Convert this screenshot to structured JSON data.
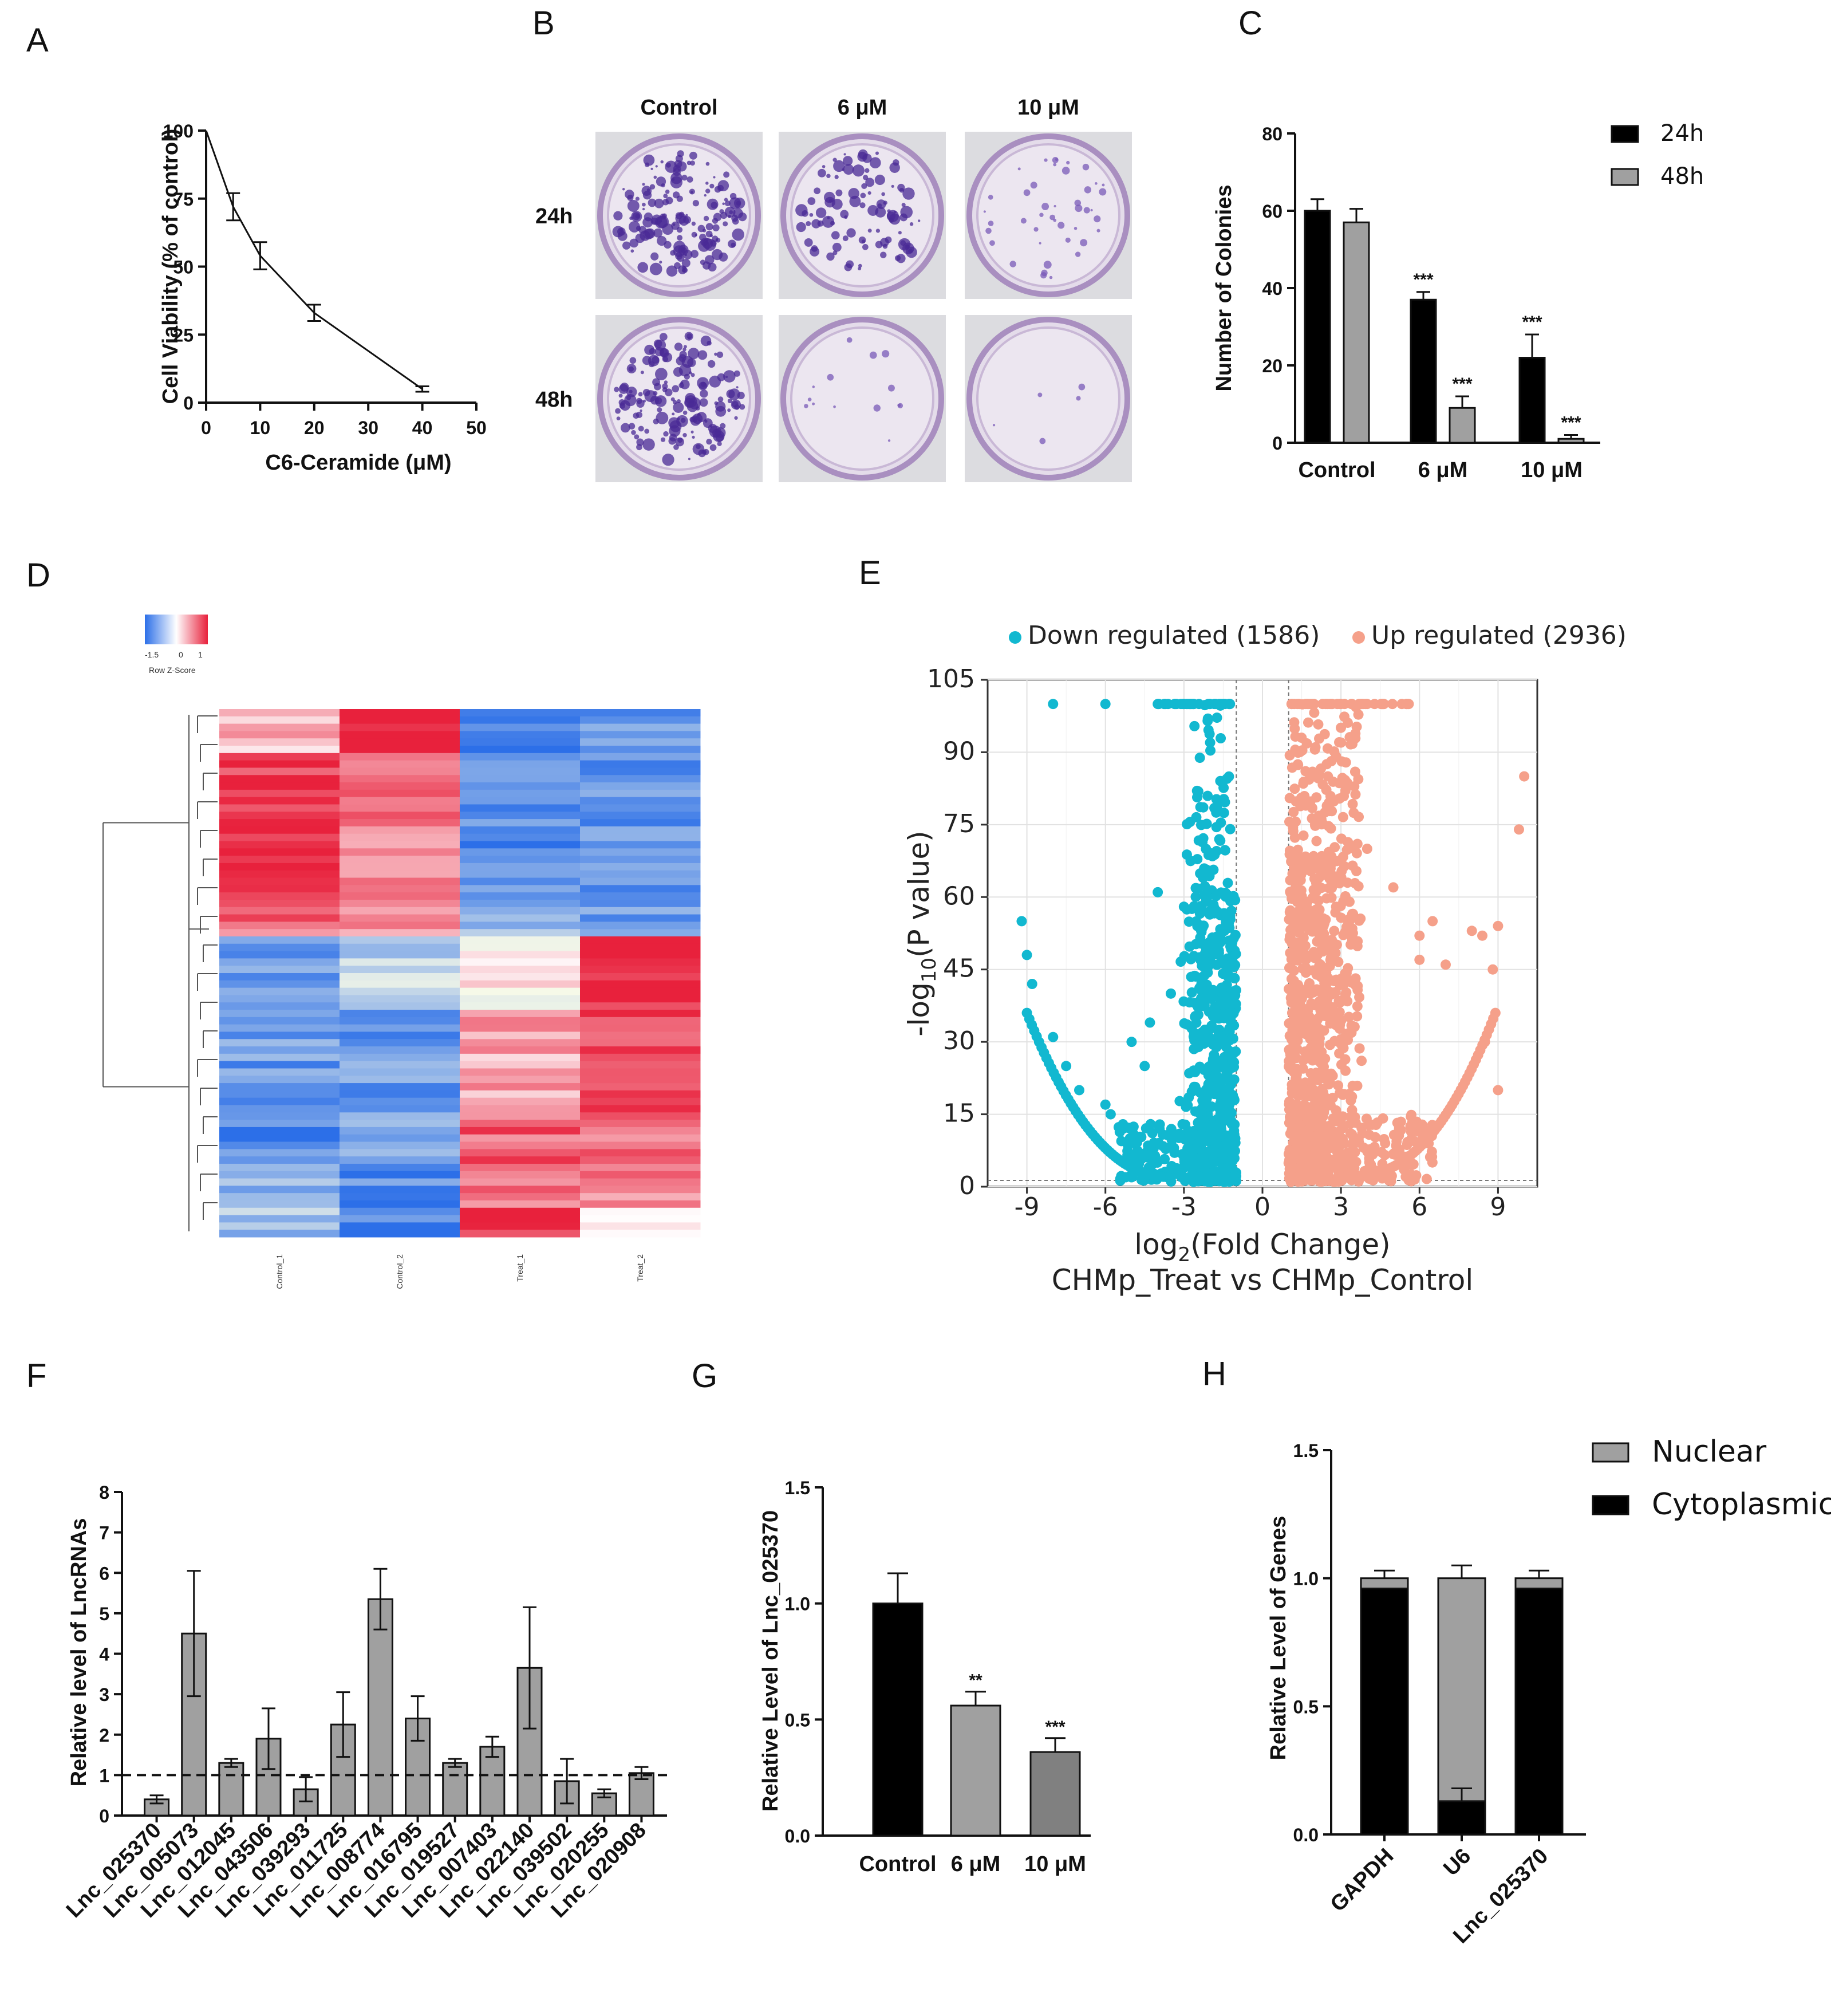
{
  "colors": {
    "black": "#000000",
    "gray": "#a0a0a0",
    "darkgray": "#808080",
    "cyan": "#12b8d0",
    "salmon": "#f5a08a",
    "red": "#e8213c",
    "blue": "#2c6fe8"
  },
  "panel_labels": [
    "A",
    "B",
    "C",
    "D",
    "E",
    "F",
    "G",
    "H"
  ],
  "chart_data": [
    {
      "panel": "A",
      "type": "line",
      "xlabel": "C6-Ceramide (μM)",
      "ylabel": "Cell Viability (% of control)",
      "xlim": [
        0,
        50
      ],
      "ylim": [
        0,
        100
      ],
      "xticks": [
        "0",
        "10",
        "20",
        "30",
        "40",
        "50"
      ],
      "yticks": [
        "0",
        "25",
        "50",
        "75",
        "100"
      ],
      "x": [
        0,
        5,
        10,
        20,
        40
      ],
      "y": [
        100,
        72,
        54,
        33,
        5
      ],
      "err": [
        0,
        5,
        5,
        3,
        1
      ]
    },
    {
      "panel": "B",
      "type": "image-grid",
      "columns": [
        "Control",
        "6 μM",
        "10 μM"
      ],
      "rows": [
        "24h",
        "48h"
      ],
      "colony_density": [
        [
          1.0,
          0.6,
          0.25
        ],
        [
          1.0,
          0.08,
          0.03
        ]
      ]
    },
    {
      "panel": "C",
      "type": "bar",
      "ylabel": "Number of Colonies",
      "ylim": [
        0,
        80
      ],
      "yticks": [
        "0",
        "20",
        "40",
        "60",
        "80"
      ],
      "categories": [
        "Control",
        "6 μM",
        "10 μM"
      ],
      "series": [
        {
          "name": "24h",
          "values": [
            60,
            37,
            22
          ],
          "err": [
            3,
            2,
            6
          ],
          "sig": [
            "",
            "***",
            "***"
          ]
        },
        {
          "name": "48h",
          "values": [
            57,
            9,
            1
          ],
          "err": [
            3.5,
            3,
            1
          ],
          "sig": [
            "",
            "***",
            "***"
          ]
        }
      ]
    },
    {
      "panel": "D",
      "type": "heatmap",
      "legend_ticks": [
        "-1.5",
        "0",
        "1"
      ],
      "legend_title": "Row Z-Score",
      "columns": [
        "Control_1",
        "Control_2",
        "Treat_1",
        "Treat_2"
      ],
      "blocks": [
        {
          "rows": 6,
          "values": [
            0.3,
            1.0,
            -0.8,
            -0.7
          ]
        },
        {
          "rows": 22,
          "values": [
            0.9,
            0.6,
            -0.8,
            -0.7
          ]
        },
        {
          "rows": 3,
          "values": [
            0.7,
            0.4,
            -0.4,
            -0.8
          ]
        },
        {
          "rows": 10,
          "values": [
            -0.7,
            -0.3,
            0.1,
            1.0
          ]
        },
        {
          "rows": 15,
          "values": [
            -0.7,
            -0.7,
            0.4,
            0.85
          ]
        },
        {
          "rows": 6,
          "values": [
            -0.8,
            -0.5,
            0.7,
            0.6
          ]
        },
        {
          "rows": 6,
          "values": [
            -0.6,
            -0.8,
            0.7,
            0.5
          ]
        },
        {
          "rows": 4,
          "values": [
            -0.4,
            -0.8,
            1.0,
            0.1
          ]
        }
      ]
    },
    {
      "panel": "E",
      "type": "scatter",
      "xlabel": "log2(Fold Change)",
      "ylabel": "-log10(P value)",
      "subtitle": "CHMp_Treat vs CHMp_Control",
      "xlim": [
        -10.5,
        10.5
      ],
      "ylim": [
        0,
        105
      ],
      "xticks": [
        "-9",
        "-6",
        "-3",
        "0",
        "3",
        "6",
        "9"
      ],
      "yticks": [
        "0",
        "15",
        "30",
        "45",
        "60",
        "75",
        "90",
        "105"
      ],
      "legend": [
        {
          "name": "Down regulated (1586)"
        },
        {
          "name": "Up regulated (2936)"
        }
      ],
      "thresholds": {
        "x": [
          -1,
          1
        ],
        "y": 1.3
      },
      "extreme_points": {
        "down": [
          [
            -9.2,
            55
          ],
          [
            -9,
            48
          ],
          [
            -8.8,
            42
          ],
          [
            -8,
            100
          ],
          [
            -6,
            100
          ],
          [
            -8,
            31
          ],
          [
            -7.5,
            25
          ],
          [
            -7,
            20
          ],
          [
            -6,
            17
          ],
          [
            -5.8,
            15
          ],
          [
            -4,
            61
          ],
          [
            -5,
            30
          ],
          [
            -4.5,
            25
          ],
          [
            -4.3,
            34
          ],
          [
            -3,
            58
          ],
          [
            -2.5,
            82
          ],
          [
            -3.5,
            40
          ],
          [
            -2,
            92
          ]
        ],
        "up": [
          [
            10,
            85
          ],
          [
            9.8,
            74
          ],
          [
            9,
            54
          ],
          [
            8.8,
            45
          ],
          [
            8.4,
            52
          ],
          [
            8,
            53
          ],
          [
            6.5,
            55
          ],
          [
            6,
            52
          ],
          [
            5.5,
            100
          ],
          [
            4,
            100
          ],
          [
            3,
            92
          ],
          [
            2.5,
            85
          ],
          [
            4,
            70
          ],
          [
            5,
            62
          ],
          [
            6,
            47
          ],
          [
            7,
            46
          ],
          [
            8.5,
            30
          ],
          [
            9,
            20
          ]
        ]
      }
    },
    {
      "panel": "F",
      "type": "bar",
      "ylabel": "Relative level of LncRNAs",
      "ylim": [
        0,
        8
      ],
      "yticks": [
        "0",
        "1",
        "2",
        "3",
        "4",
        "5",
        "6",
        "7",
        "8"
      ],
      "categories": [
        "Lnc_025370",
        "Lnc_005073",
        "Lnc_012045",
        "Lnc_043506",
        "Lnc_039293",
        "Lnc_011725",
        "Lnc_008774",
        "Lnc_016795",
        "Lnc_019527",
        "Lnc_007403",
        "Lnc_022140",
        "Lnc_039502",
        "Lnc_020255",
        "Lnc_020908"
      ],
      "values": [
        0.4,
        4.5,
        1.3,
        1.9,
        0.65,
        2.25,
        5.35,
        2.4,
        1.3,
        1.7,
        3.65,
        0.85,
        0.55,
        1.05
      ],
      "err": [
        0.1,
        1.55,
        0.1,
        0.75,
        0.3,
        0.8,
        0.75,
        0.55,
        0.1,
        0.25,
        1.5,
        0.55,
        0.1,
        0.15
      ],
      "reference_line": 1
    },
    {
      "panel": "G",
      "type": "bar",
      "ylabel": "Relative Level of Lnc_025370",
      "ylim": [
        0,
        1.5
      ],
      "yticks": [
        "0.0",
        "0.5",
        "1.0",
        "1.5"
      ],
      "categories": [
        "Control",
        "6 μM",
        "10 μM"
      ],
      "values": [
        1.0,
        0.56,
        0.36
      ],
      "err": [
        0.13,
        0.06,
        0.06
      ],
      "sig": [
        "",
        "**",
        "***"
      ]
    },
    {
      "panel": "H",
      "type": "stacked-bar",
      "ylabel": "Relative Level of Genes",
      "ylim": [
        0,
        1.5
      ],
      "yticks": [
        "0.0",
        "0.5",
        "1.0",
        "1.5"
      ],
      "categories": [
        "GAPDH",
        "U6",
        "Lnc_025370"
      ],
      "series": [
        {
          "name": "Nuclear",
          "values": [
            0.04,
            0.87,
            0.04
          ],
          "err": [
            0.03,
            0.05,
            0.03
          ]
        },
        {
          "name": "Cytoplasmic",
          "values": [
            0.96,
            0.13,
            0.96
          ],
          "err": [
            0,
            0.05,
            0
          ]
        }
      ]
    }
  ]
}
